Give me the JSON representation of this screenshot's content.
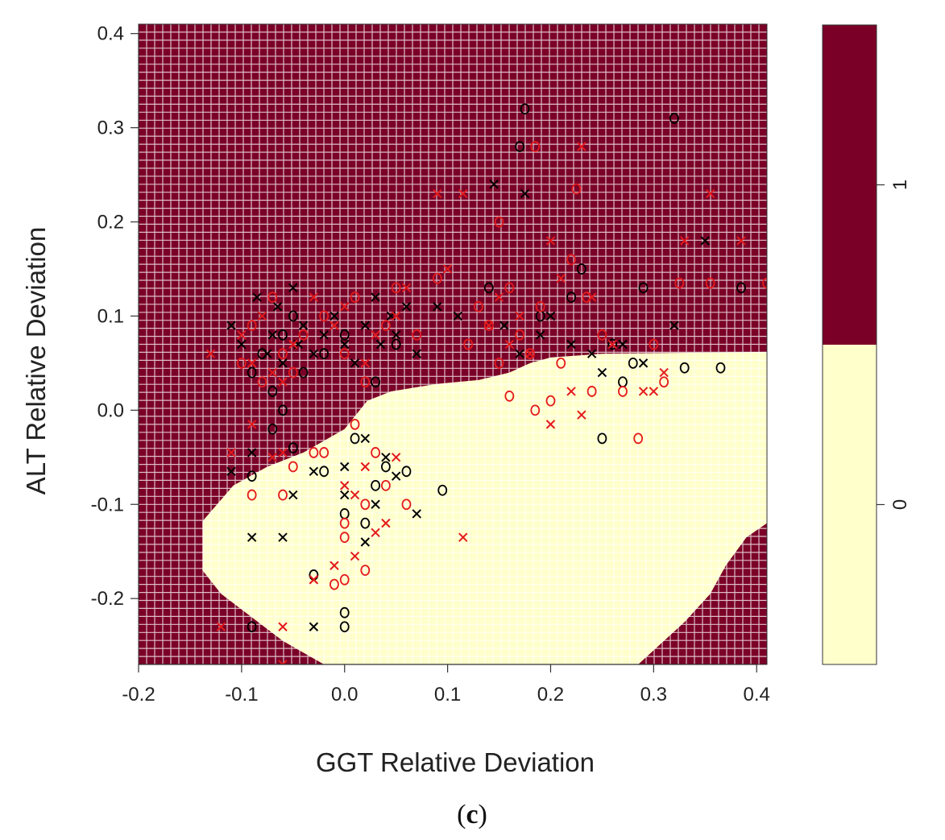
{
  "chart_data": {
    "type": "scatter",
    "subtype": "classification-decision-region",
    "title": "",
    "panel_label_open": "(",
    "panel_label_letter": "c",
    "panel_label_close": ")",
    "xlabel": "GGT Relative Deviation",
    "ylabel": "ALT Relative Deviation",
    "xlim": [
      -0.2,
      0.41
    ],
    "ylim": [
      -0.27,
      0.41
    ],
    "xticks": [
      "-0.2",
      "-0.1",
      "0.0",
      "0.1",
      "0.2",
      "0.3",
      "0.4"
    ],
    "yticks": [
      "-0.2",
      "-0.1",
      "0.0",
      "0.1",
      "0.2",
      "0.3",
      "0.4"
    ],
    "grid": true,
    "region_colors": {
      "class_1": "#7b0028",
      "class_0": "#ffffcc",
      "grid_line": "#ffffff"
    },
    "region_class0_boundary": [
      [
        -0.138,
        -0.118
      ],
      [
        -0.108,
        -0.08
      ],
      [
        -0.075,
        -0.06
      ],
      [
        -0.04,
        -0.045
      ],
      [
        0.0,
        -0.02
      ],
      [
        0.022,
        0.01
      ],
      [
        0.045,
        0.02
      ],
      [
        0.09,
        0.028
      ],
      [
        0.13,
        0.032
      ],
      [
        0.16,
        0.04
      ],
      [
        0.18,
        0.05
      ],
      [
        0.2,
        0.056
      ],
      [
        0.25,
        0.06
      ],
      [
        0.41,
        0.062
      ],
      [
        0.41,
        -0.12
      ],
      [
        0.39,
        -0.135
      ],
      [
        0.37,
        -0.165
      ],
      [
        0.355,
        -0.195
      ],
      [
        0.33,
        -0.225
      ],
      [
        0.305,
        -0.25
      ],
      [
        0.285,
        -0.27
      ],
      [
        -0.02,
        -0.27
      ],
      [
        -0.06,
        -0.245
      ],
      [
        -0.09,
        -0.22
      ],
      [
        -0.12,
        -0.195
      ],
      [
        -0.138,
        -0.17
      ]
    ],
    "colorbar": {
      "labels": [
        "1",
        "0"
      ],
      "colors": [
        "#7b0028",
        "#ffffcc"
      ],
      "split_fraction": 0.5
    },
    "legend": "none",
    "series": [
      {
        "name": "black x",
        "marker": "x",
        "color": "#000000",
        "x": [
          -0.11,
          -0.1,
          -0.085,
          -0.08,
          -0.075,
          -0.07,
          -0.065,
          -0.06,
          -0.05,
          -0.045,
          -0.04,
          -0.03,
          -0.02,
          -0.01,
          0.0,
          0.01,
          0.02,
          0.03,
          0.035,
          0.045,
          0.05,
          0.06,
          0.07,
          0.09,
          0.11,
          0.145,
          0.155,
          0.17,
          0.175,
          0.19,
          0.2,
          0.22,
          0.24,
          0.25,
          0.27,
          0.29,
          0.32,
          0.35,
          -0.09,
          -0.05,
          -0.03,
          -0.11,
          -0.09,
          -0.06,
          -0.03,
          0.0,
          0.0,
          0.02,
          0.04,
          0.05,
          0.07,
          0.02,
          0.03
        ],
        "y": [
          0.09,
          0.07,
          0.12,
          0.1,
          0.06,
          0.08,
          0.11,
          0.05,
          0.13,
          0.07,
          0.09,
          0.06,
          0.08,
          0.1,
          0.07,
          0.05,
          0.09,
          0.12,
          0.07,
          0.1,
          0.08,
          0.11,
          0.06,
          0.11,
          0.1,
          0.24,
          0.09,
          0.06,
          0.23,
          0.08,
          0.1,
          0.07,
          0.06,
          0.04,
          0.07,
          0.05,
          0.09,
          0.18,
          -0.045,
          -0.09,
          -0.065,
          -0.065,
          -0.135,
          -0.135,
          -0.23,
          -0.09,
          -0.06,
          -0.03,
          -0.05,
          -0.07,
          -0.11,
          -0.14,
          -0.1
        ]
      },
      {
        "name": "black o",
        "marker": "o",
        "color": "#000000",
        "x": [
          -0.09,
          -0.08,
          -0.07,
          -0.06,
          -0.05,
          -0.04,
          -0.02,
          0.0,
          0.03,
          0.05,
          -0.09,
          -0.07,
          -0.06,
          -0.05,
          -0.02,
          0.0,
          0.01,
          0.02,
          0.03,
          0.04,
          0.06,
          0.095,
          -0.03,
          -0.09,
          0.0,
          0.0,
          0.17,
          0.175,
          0.14,
          0.19,
          0.22,
          0.23,
          0.25,
          0.26,
          0.27,
          0.28,
          0.29,
          0.32,
          0.33,
          0.365,
          0.385
        ],
        "y": [
          0.04,
          0.06,
          0.02,
          0.08,
          0.1,
          0.04,
          0.06,
          0.08,
          0.03,
          0.07,
          -0.07,
          -0.02,
          0.0,
          -0.04,
          -0.065,
          -0.11,
          -0.03,
          -0.12,
          -0.08,
          -0.06,
          -0.065,
          -0.085,
          -0.175,
          -0.23,
          -0.215,
          -0.23,
          0.28,
          0.32,
          0.13,
          0.1,
          0.12,
          0.15,
          -0.03,
          0.07,
          0.03,
          0.05,
          0.13,
          0.31,
          0.045,
          0.045,
          0.13
        ]
      },
      {
        "name": "red x",
        "marker": "x",
        "color": "#e31a1c",
        "x": [
          -0.13,
          -0.1,
          -0.09,
          -0.08,
          -0.07,
          -0.06,
          -0.05,
          -0.03,
          -0.01,
          0.0,
          0.02,
          0.03,
          0.05,
          0.06,
          0.09,
          0.1,
          0.115,
          0.14,
          0.15,
          0.16,
          0.17,
          0.18,
          0.2,
          0.21,
          0.23,
          0.24,
          0.26,
          0.29,
          0.31,
          0.33,
          0.355,
          0.385,
          -0.11,
          -0.09,
          -0.07,
          -0.06,
          -0.03,
          0.0,
          0.01,
          0.02,
          0.04,
          0.115,
          -0.12,
          -0.06,
          -0.06,
          -0.03,
          -0.01,
          0.01,
          0.03,
          0.05,
          0.2,
          0.22,
          0.23,
          0.3
        ],
        "y": [
          0.06,
          0.08,
          0.05,
          0.1,
          0.04,
          0.03,
          0.07,
          0.12,
          0.09,
          0.11,
          0.05,
          0.08,
          0.1,
          0.13,
          0.23,
          0.15,
          0.23,
          0.09,
          0.12,
          0.07,
          0.1,
          0.06,
          0.18,
          0.14,
          0.28,
          0.12,
          0.07,
          0.02,
          0.04,
          0.18,
          0.23,
          0.18,
          -0.045,
          -0.015,
          -0.05,
          -0.045,
          -0.18,
          -0.08,
          -0.09,
          -0.06,
          -0.12,
          -0.135,
          -0.23,
          -0.23,
          -0.27,
          -0.18,
          -0.165,
          -0.155,
          -0.13,
          -0.05,
          -0.015,
          0.02,
          -0.005,
          0.02
        ]
      },
      {
        "name": "red o",
        "marker": "o",
        "color": "#e31a1c",
        "x": [
          -0.1,
          -0.09,
          -0.08,
          -0.07,
          -0.06,
          -0.05,
          -0.04,
          -0.02,
          0.0,
          0.01,
          0.02,
          0.04,
          0.05,
          0.07,
          0.09,
          0.12,
          0.13,
          0.14,
          0.15,
          0.16,
          0.17,
          0.18,
          0.19,
          0.21,
          0.22,
          0.235,
          0.25,
          0.27,
          0.3,
          0.31,
          0.325,
          0.355,
          0.41,
          -0.09,
          -0.06,
          -0.05,
          -0.03,
          -0.02,
          0.0,
          0.01,
          0.02,
          0.03,
          0.04,
          0.06,
          -0.01,
          0.0,
          0.02,
          0.0,
          0.16,
          0.185,
          0.2,
          0.24,
          0.285,
          0.15,
          0.185,
          0.225
        ],
        "y": [
          0.05,
          0.09,
          0.03,
          0.12,
          0.06,
          0.04,
          0.08,
          0.1,
          0.06,
          0.12,
          0.03,
          0.09,
          0.13,
          0.08,
          0.14,
          0.07,
          0.11,
          0.09,
          0.05,
          0.13,
          0.08,
          0.06,
          0.11,
          0.05,
          0.16,
          0.12,
          0.08,
          0.02,
          0.07,
          0.03,
          0.135,
          0.135,
          0.135,
          -0.09,
          -0.09,
          -0.06,
          -0.045,
          -0.045,
          -0.12,
          -0.015,
          -0.1,
          -0.045,
          -0.08,
          -0.1,
          -0.185,
          -0.135,
          -0.17,
          -0.18,
          0.015,
          0.0,
          0.01,
          0.02,
          -0.03,
          0.2,
          0.28,
          0.235
        ]
      }
    ]
  }
}
